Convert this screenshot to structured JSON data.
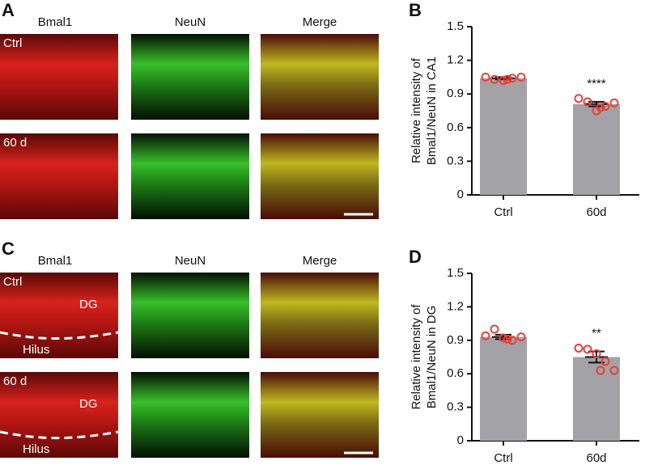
{
  "panels": [
    {
      "label": "A",
      "columns": [
        "Bmal1",
        "NeuN",
        "Merge"
      ],
      "rows": [
        "Ctrl",
        "60 d"
      ]
    },
    {
      "label": "C",
      "columns": [
        "Bmal1",
        "NeuN",
        "Merge"
      ],
      "rows": [
        "Ctrl",
        "60 d"
      ],
      "regions": [
        "DG",
        "Hilus"
      ]
    }
  ],
  "chart_data": [
    {
      "type": "bar",
      "panel": "B",
      "ylabel": [
        "Relative intensity of",
        "Bmal1/NeuN in CA1"
      ],
      "categories": [
        "Ctrl",
        "60d"
      ],
      "values": [
        1.04,
        0.81
      ],
      "errors": [
        0.01,
        0.02
      ],
      "points": [
        [
          1.05,
          1.03,
          1.02,
          1.04,
          1.05,
          1.03
        ],
        [
          0.86,
          0.83,
          0.75,
          0.79,
          0.82,
          0.78
        ]
      ],
      "significance": "****",
      "color": "#a3a3a7",
      "point_color": "#e5413b",
      "ylim": [
        0,
        1.5
      ],
      "yticks": [
        0,
        0.3,
        0.6,
        0.9,
        1.2,
        1.5
      ]
    },
    {
      "type": "bar",
      "panel": "D",
      "ylabel": [
        "Relative intensity of",
        "Bmal1/NeuN in DG"
      ],
      "categories": [
        "Ctrl",
        "60d"
      ],
      "values": [
        0.93,
        0.75
      ],
      "errors": [
        0.02,
        0.05
      ],
      "points": [
        [
          0.94,
          1.0,
          0.92,
          0.9,
          0.93,
          0.91
        ],
        [
          0.83,
          0.82,
          0.78,
          0.71,
          0.63,
          0.63
        ]
      ],
      "significance": "**",
      "color": "#a3a3a7",
      "point_color": "#e5413b",
      "ylim": [
        0,
        1.5
      ],
      "yticks": [
        0,
        0.3,
        0.6,
        0.9,
        1.2,
        1.5
      ]
    }
  ]
}
